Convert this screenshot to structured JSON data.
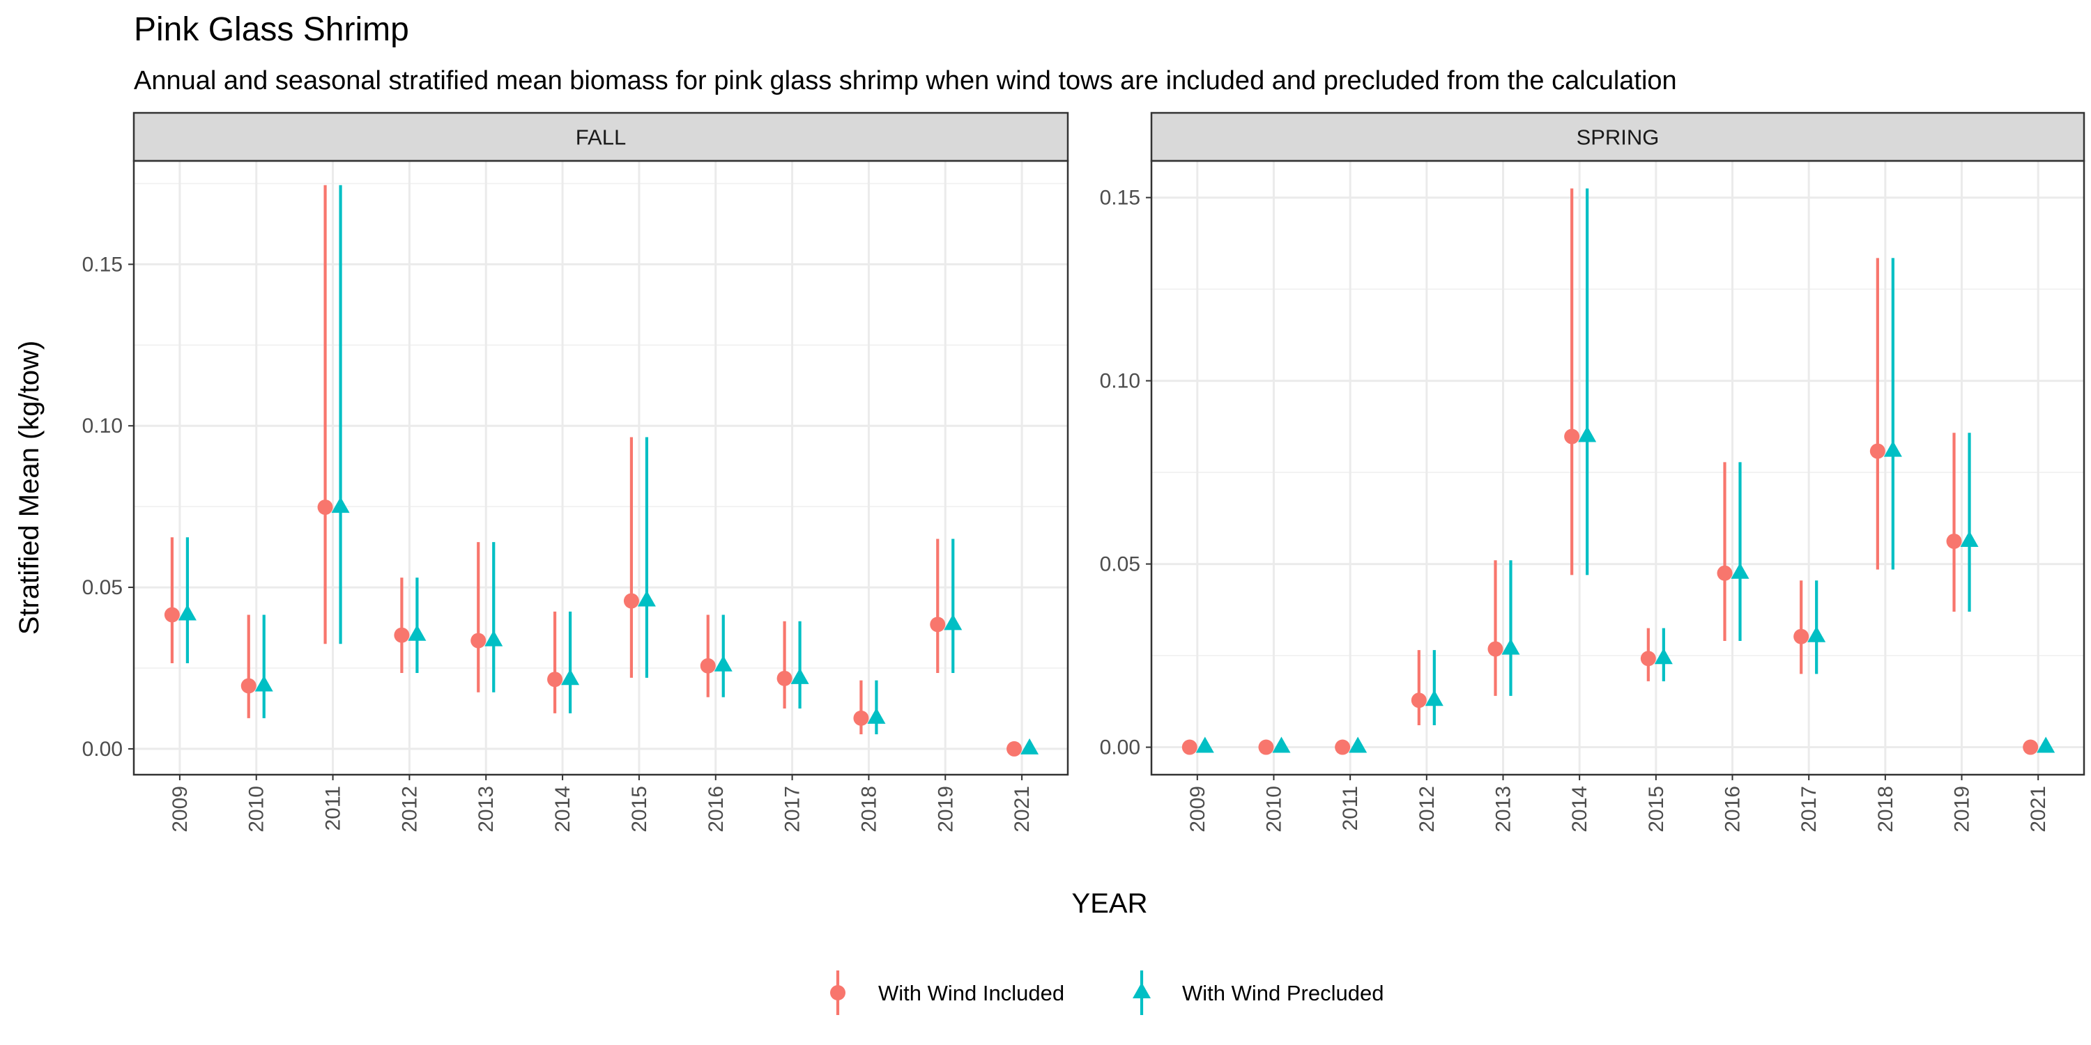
{
  "chart_data": {
    "type": "scatter",
    "title": "Pink Glass Shrimp",
    "subtitle": "Annual and seasonal stratified mean biomass for pink glass shrimp when wind tows are included and precluded from the calculation",
    "xlabel": "YEAR",
    "ylabel": "Stratified Mean (kg/tow)",
    "legend_position": "bottom",
    "grid": true,
    "colors": {
      "with_wind_included": "#F8766D",
      "with_wind_precluded": "#00BFC4"
    },
    "legend": [
      {
        "label": "With Wind Included",
        "shape": "circle",
        "color": "#F8766D"
      },
      {
        "label": "With Wind Precluded",
        "shape": "triangle",
        "color": "#00BFC4"
      }
    ],
    "panels": [
      {
        "label": "FALL",
        "categories": [
          "2009",
          "2010",
          "2011",
          "2012",
          "2013",
          "2014",
          "2015",
          "2016",
          "2017",
          "2018",
          "2019",
          "2021"
        ],
        "ylim": [
          -0.008,
          0.182
        ],
        "yticks": [
          0.0,
          0.05,
          0.1,
          0.15
        ],
        "ytick_labels": [
          "0.00",
          "0.05",
          "0.10",
          "0.15"
        ],
        "series": [
          {
            "name": "With Wind Included",
            "mean": [
              0.0415,
              0.0195,
              0.0748,
              0.0352,
              0.0335,
              0.0215,
              0.0458,
              0.0257,
              0.0218,
              0.0095,
              0.0385,
              0.0
            ],
            "lower": [
              0.0265,
              0.0095,
              0.0325,
              0.0235,
              0.0175,
              0.011,
              0.022,
              0.016,
              0.0125,
              0.0045,
              0.0235,
              0.0
            ],
            "upper": [
              0.0655,
              0.0415,
              0.1745,
              0.053,
              0.064,
              0.0425,
              0.0965,
              0.0415,
              0.0395,
              0.0212,
              0.065,
              0.0
            ]
          },
          {
            "name": "With Wind Precluded",
            "mean": [
              0.0415,
              0.0195,
              0.0748,
              0.0352,
              0.0335,
              0.0215,
              0.0458,
              0.0257,
              0.0218,
              0.0095,
              0.0385,
              0.0
            ],
            "lower": [
              0.0265,
              0.0095,
              0.0325,
              0.0235,
              0.0175,
              0.011,
              0.022,
              0.016,
              0.0125,
              0.0045,
              0.0235,
              0.0
            ],
            "upper": [
              0.0655,
              0.0415,
              0.1745,
              0.053,
              0.064,
              0.0425,
              0.0965,
              0.0415,
              0.0395,
              0.0212,
              0.065,
              0.0
            ]
          }
        ]
      },
      {
        "label": "SPRING",
        "categories": [
          "2009",
          "2010",
          "2011",
          "2012",
          "2013",
          "2014",
          "2015",
          "2016",
          "2017",
          "2018",
          "2019",
          "2021"
        ],
        "ylim": [
          -0.0075,
          0.16
        ],
        "yticks": [
          0.0,
          0.05,
          0.1,
          0.15
        ],
        "ytick_labels": [
          "0.00",
          "0.05",
          "0.10",
          "0.15"
        ],
        "series": [
          {
            "name": "With Wind Included",
            "mean": [
              0.0,
              0.0,
              0.0,
              0.0128,
              0.0268,
              0.0848,
              0.0242,
              0.0475,
              0.0302,
              0.0808,
              0.0562,
              0.0
            ],
            "lower": [
              0.0,
              0.0,
              0.0,
              0.006,
              0.014,
              0.047,
              0.018,
              0.029,
              0.02,
              0.0485,
              0.037,
              0.0
            ],
            "upper": [
              0.0,
              0.0,
              0.0,
              0.0265,
              0.051,
              0.1525,
              0.0325,
              0.0778,
              0.0455,
              0.1335,
              0.0858,
              0.0
            ]
          },
          {
            "name": "With Wind Precluded",
            "mean": [
              0.0,
              0.0,
              0.0,
              0.0128,
              0.0268,
              0.0848,
              0.0242,
              0.0475,
              0.0302,
              0.0808,
              0.0562,
              0.0
            ],
            "lower": [
              0.0,
              0.0,
              0.0,
              0.006,
              0.014,
              0.047,
              0.018,
              0.029,
              0.02,
              0.0485,
              0.037,
              0.0
            ],
            "upper": [
              0.0,
              0.0,
              0.0,
              0.0265,
              0.051,
              0.1525,
              0.0325,
              0.0778,
              0.0455,
              0.1335,
              0.0858,
              0.0
            ]
          }
        ]
      }
    ]
  }
}
